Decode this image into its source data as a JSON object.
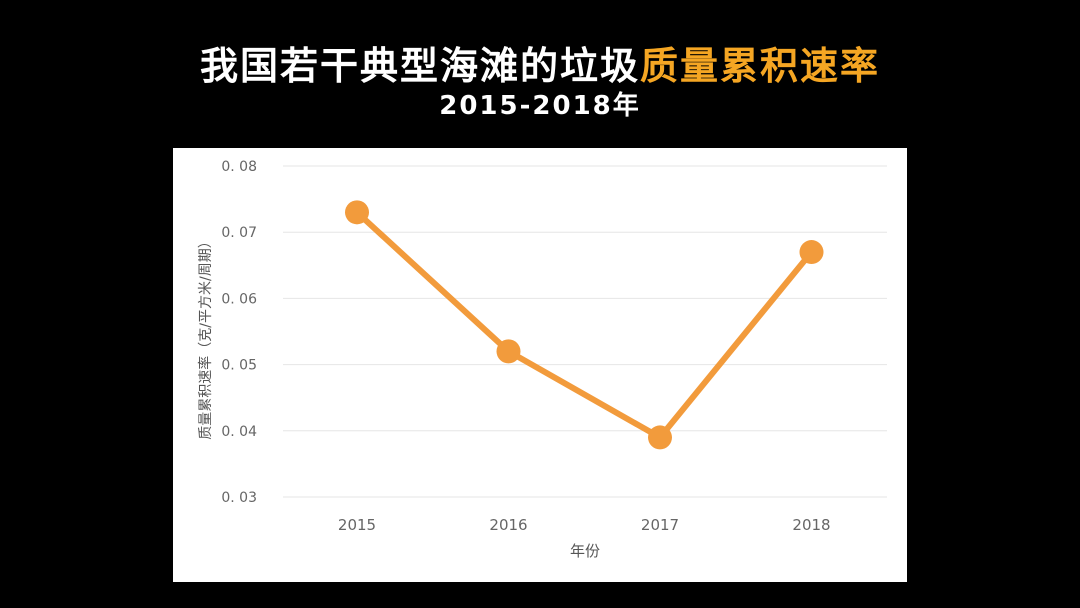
{
  "header": {
    "title_main": "我国若干典型海滩的垃圾",
    "title_highlight": "质量累积速率",
    "subtitle": "2015-2018年"
  },
  "colors": {
    "background": "#000000",
    "highlight": "#f5a623",
    "series": "#f29b3c",
    "grid": "#e6e6e6",
    "axis_text": "#666666"
  },
  "chart_data": {
    "type": "line",
    "title": "我国若干典型海滩的垃圾质量累积速率",
    "subtitle": "2015-2018年",
    "xlabel": "年份",
    "ylabel": "质量累积速率（克/平方米/周期）",
    "categories": [
      "2015",
      "2016",
      "2017",
      "2018"
    ],
    "series": [
      {
        "values": [
          0.073,
          0.052,
          0.039,
          0.067
        ]
      }
    ],
    "ylim": [
      0.03,
      0.08
    ],
    "yticks": [
      0.03,
      0.04,
      0.05,
      0.06,
      0.07,
      0.08
    ],
    "ytick_labels": [
      "0. 03",
      "0. 04",
      "0. 05",
      "0. 06",
      "0. 07",
      "0. 08"
    ],
    "grid": true,
    "legend": "none"
  }
}
